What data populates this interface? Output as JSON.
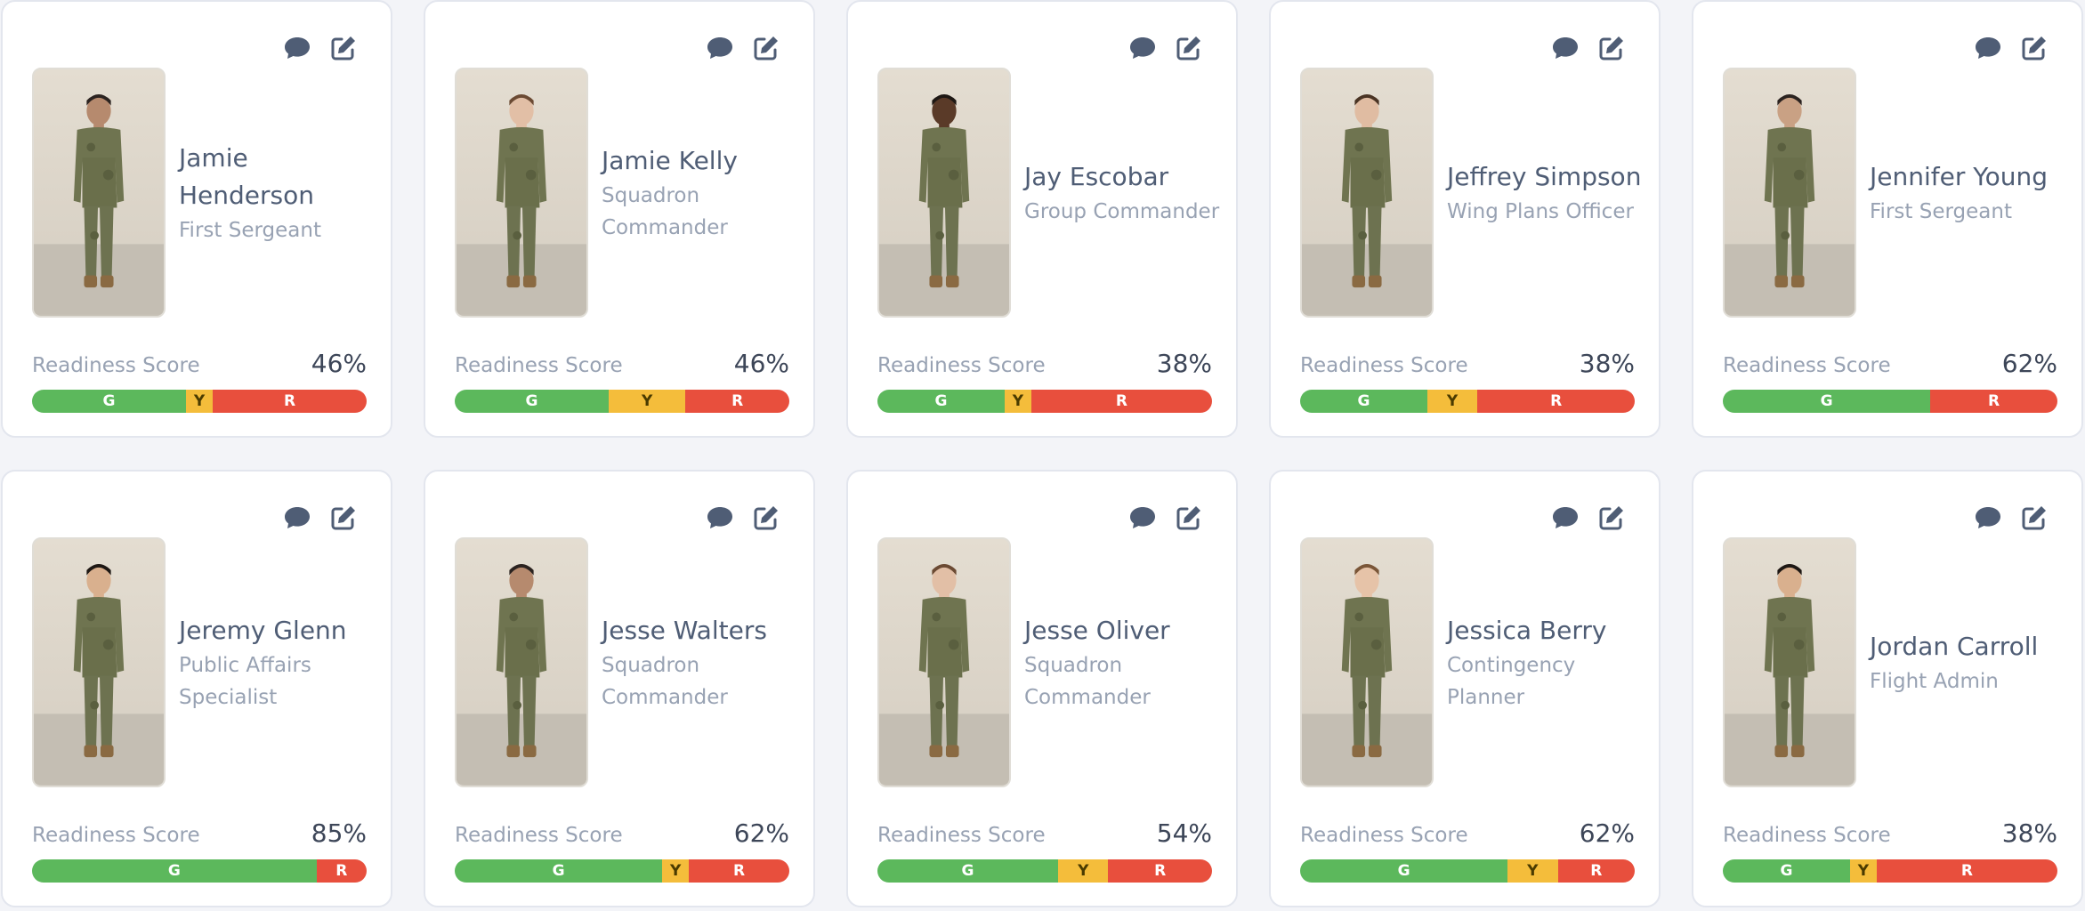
{
  "labels": {
    "score_label": "Readiness Score"
  },
  "colors": {
    "green": "#5cb85c",
    "yellow": "#f4bd3b",
    "red": "#e84f3d",
    "icon": "#4f5d75"
  },
  "cards": [
    {
      "name": "Jamie Henderson",
      "role": "First Sergeant",
      "score": "46%",
      "bar": [
        {
          "label": "G",
          "type": "g",
          "value": 0.46
        },
        {
          "label": "Y",
          "type": "y",
          "value": 0.08
        },
        {
          "label": "R",
          "type": "r",
          "value": 0.46
        }
      ]
    },
    {
      "name": "Jamie Kelly",
      "role": "Squadron Commander",
      "score": "46%",
      "bar": [
        {
          "label": "G",
          "type": "g",
          "value": 0.46
        },
        {
          "label": "Y",
          "type": "y",
          "value": 0.23
        },
        {
          "label": "R",
          "type": "r",
          "value": 0.31
        }
      ]
    },
    {
      "name": "Jay Escobar",
      "role": "Group Commander",
      "score": "38%",
      "bar": [
        {
          "label": "G",
          "type": "g",
          "value": 0.38
        },
        {
          "label": "Y",
          "type": "y",
          "value": 0.08
        },
        {
          "label": "R",
          "type": "r",
          "value": 0.54
        }
      ]
    },
    {
      "name": "Jeffrey Simpson",
      "role": "Wing Plans Officer",
      "score": "38%",
      "bar": [
        {
          "label": "G",
          "type": "g",
          "value": 0.38
        },
        {
          "label": "Y",
          "type": "y",
          "value": 0.15
        },
        {
          "label": "R",
          "type": "r",
          "value": 0.47
        }
      ]
    },
    {
      "name": "Jennifer Young",
      "role": "First Sergeant",
      "score": "62%",
      "bar": [
        {
          "label": "G",
          "type": "g",
          "value": 0.62
        },
        {
          "label": "R",
          "type": "r",
          "value": 0.38
        }
      ]
    },
    {
      "name": "Jeremy Glenn",
      "role": "Public Affairs Specialist",
      "score": "85%",
      "bar": [
        {
          "label": "G",
          "type": "g",
          "value": 0.85
        },
        {
          "label": "R",
          "type": "r",
          "value": 0.15
        }
      ]
    },
    {
      "name": "Jesse Walters",
      "role": "Squadron Commander",
      "score": "62%",
      "bar": [
        {
          "label": "G",
          "type": "g",
          "value": 0.62
        },
        {
          "label": "Y",
          "type": "y",
          "value": 0.08
        },
        {
          "label": "R",
          "type": "r",
          "value": 0.3
        }
      ]
    },
    {
      "name": "Jesse Oliver",
      "role": "Squadron Commander",
      "score": "54%",
      "bar": [
        {
          "label": "G",
          "type": "g",
          "value": 0.54
        },
        {
          "label": "Y",
          "type": "y",
          "value": 0.15
        },
        {
          "label": "R",
          "type": "r",
          "value": 0.31
        }
      ]
    },
    {
      "name": "Jessica Berry",
      "role": "Contingency Planner",
      "score": "62%",
      "bar": [
        {
          "label": "G",
          "type": "g",
          "value": 0.62
        },
        {
          "label": "Y",
          "type": "y",
          "value": 0.15
        },
        {
          "label": "R",
          "type": "r",
          "value": 0.23
        }
      ]
    },
    {
      "name": "Jordan Carroll",
      "role": "Flight Admin",
      "score": "38%",
      "bar": [
        {
          "label": "G",
          "type": "g",
          "value": 0.38
        },
        {
          "label": "Y",
          "type": "y",
          "value": 0.08
        },
        {
          "label": "R",
          "type": "r",
          "value": 0.54
        }
      ]
    }
  ]
}
